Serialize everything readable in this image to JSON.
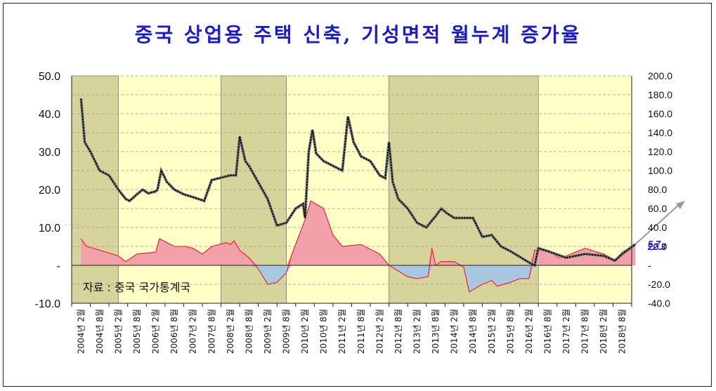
{
  "chart_data": {
    "type": "line",
    "title": "중국 상업용 주택 신축, 기성면적 월누계 증가율",
    "source_note": "자료 : 중국 국가통계국",
    "y_left": {
      "min": -10,
      "max": 50,
      "ticks": [
        "50.0",
        "40.0",
        "30.0",
        "20.0",
        "10.0",
        "-",
        "-10.0"
      ]
    },
    "y_right": {
      "min": -40,
      "max": 200,
      "ticks": [
        "200.0",
        "180.0",
        "160.0",
        "140.0",
        "120.0",
        "100.0",
        "80.0",
        "60.0",
        "40.0",
        "20.0",
        "-",
        "-20.0",
        "-40.0"
      ]
    },
    "x_ticks": [
      "2004년 2월",
      "2004년 8월",
      "2005년 2월",
      "2005년 8월",
      "2006년 2월",
      "2006년 8월",
      "2007년 2월",
      "2007년 8월",
      "2008년 2월",
      "2008년 8월",
      "2009년 2월",
      "2009년 8월",
      "2010년 2월",
      "2010년 8월",
      "2011년 2월",
      "2011년 8월",
      "2012년 2월",
      "2012년 8월",
      "2013년 2월",
      "2013년 8월",
      "2014년 2월",
      "2014년 8월",
      "2015년 2월",
      "2015년 8월",
      "2016년 2월",
      "2016년 8월",
      "2017년 2월",
      "2017년 8월",
      "2018년 2월",
      "2018년 8월"
    ],
    "shaded_periods": [
      [
        0,
        2
      ],
      [
        8,
        11
      ],
      [
        17,
        24.5
      ]
    ],
    "end_labels": [
      "5.7",
      "22.3"
    ],
    "area_series": {
      "axis": "left",
      "points": [
        [
          0,
          7
        ],
        [
          0.3,
          5
        ],
        [
          1,
          4
        ],
        [
          2,
          2.5
        ],
        [
          2.4,
          1
        ],
        [
          3,
          3
        ],
        [
          4,
          3.5
        ],
        [
          4.2,
          7
        ],
        [
          5,
          5
        ],
        [
          5.6,
          5
        ],
        [
          6,
          4.5
        ],
        [
          6.5,
          3
        ],
        [
          7,
          5
        ],
        [
          7.8,
          6
        ],
        [
          8,
          5.5
        ],
        [
          8.2,
          6.5
        ],
        [
          8.5,
          4
        ],
        [
          9,
          2
        ],
        [
          9.5,
          -1
        ],
        [
          10,
          -5
        ],
        [
          10.5,
          -4.5
        ],
        [
          11,
          -2
        ],
        [
          11.3,
          3
        ],
        [
          12,
          12
        ],
        [
          12.3,
          17
        ],
        [
          13,
          15
        ],
        [
          13.5,
          8
        ],
        [
          14,
          5
        ],
        [
          15,
          5.5
        ],
        [
          16,
          3
        ],
        [
          16.5,
          0
        ],
        [
          17,
          -1.5
        ],
        [
          17.5,
          -3
        ],
        [
          18,
          -3.5
        ],
        [
          18.6,
          -3
        ],
        [
          18.8,
          4.5
        ],
        [
          19,
          0
        ],
        [
          19.3,
          1
        ],
        [
          20,
          1
        ],
        [
          20.5,
          -0.5
        ],
        [
          20.8,
          -7
        ],
        [
          21.5,
          -5
        ],
        [
          22,
          -4
        ],
        [
          22.3,
          -5.5
        ],
        [
          23,
          -4.5
        ],
        [
          23.5,
          -3.5
        ],
        [
          24,
          -3.5
        ],
        [
          24.3,
          4
        ],
        [
          25,
          4
        ],
        [
          25.6,
          2
        ],
        [
          26,
          2.5
        ],
        [
          27,
          4.5
        ],
        [
          28,
          3
        ],
        [
          28.6,
          1.5
        ],
        [
          29,
          3.5
        ],
        [
          29.7,
          5.7
        ]
      ]
    },
    "line_series": {
      "axis": "right",
      "points": [
        [
          0,
          176
        ],
        [
          0.2,
          130
        ],
        [
          0.5,
          120
        ],
        [
          1,
          100
        ],
        [
          1.5,
          95
        ],
        [
          2,
          80
        ],
        [
          2.4,
          70
        ],
        [
          2.6,
          68
        ],
        [
          3,
          75
        ],
        [
          3.3,
          80
        ],
        [
          3.6,
          76
        ],
        [
          4,
          78
        ],
        [
          4.1,
          80
        ],
        [
          4.3,
          100
        ],
        [
          4.6,
          88
        ],
        [
          5,
          80
        ],
        [
          5.5,
          75
        ],
        [
          6,
          72
        ],
        [
          6.3,
          70
        ],
        [
          6.6,
          68
        ],
        [
          7,
          90
        ],
        [
          8,
          95
        ],
        [
          8.3,
          95
        ],
        [
          8.5,
          136
        ],
        [
          8.8,
          110
        ],
        [
          9,
          105
        ],
        [
          10,
          70
        ],
        [
          10.5,
          42
        ],
        [
          11,
          45
        ],
        [
          11.5,
          60
        ],
        [
          11.9,
          65
        ],
        [
          12,
          50
        ],
        [
          12.2,
          120
        ],
        [
          12.4,
          143
        ],
        [
          12.6,
          118
        ],
        [
          13,
          110
        ],
        [
          13.5,
          105
        ],
        [
          14,
          100
        ],
        [
          14.3,
          157
        ],
        [
          14.6,
          130
        ],
        [
          15,
          115
        ],
        [
          15.5,
          110
        ],
        [
          16,
          95
        ],
        [
          16.3,
          92
        ],
        [
          16.5,
          130
        ],
        [
          16.7,
          88
        ],
        [
          17,
          70
        ],
        [
          17.5,
          60
        ],
        [
          18,
          45
        ],
        [
          18.5,
          40
        ],
        [
          19,
          52
        ],
        [
          19.3,
          60
        ],
        [
          19.6,
          55
        ],
        [
          20,
          50
        ],
        [
          21,
          50
        ],
        [
          21.5,
          30
        ],
        [
          22,
          32
        ],
        [
          22.5,
          20
        ],
        [
          23,
          15
        ],
        [
          24,
          3
        ],
        [
          24.3,
          0
        ],
        [
          24.5,
          18
        ],
        [
          25,
          15
        ],
        [
          26,
          8
        ],
        [
          27,
          12
        ],
        [
          28,
          10
        ],
        [
          28.6,
          5
        ],
        [
          29,
          12
        ],
        [
          29.7,
          22.3
        ]
      ]
    }
  }
}
